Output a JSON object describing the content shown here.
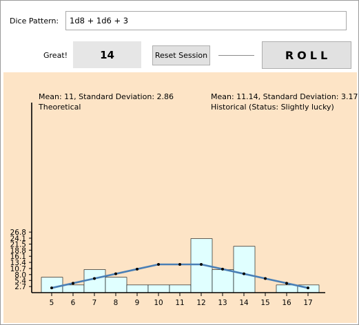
{
  "form": {
    "pattern_label": "Dice Pattern:",
    "pattern_value": "1d8 + 1d6 + 3",
    "result_label": "Great!",
    "result_value": "14",
    "reset_label": "Reset Session",
    "roll_label": "ROLL"
  },
  "stats": {
    "theoretical_line1": "Mean: 11, Standard Deviation: 2.86",
    "theoretical_line2": "Theoretical",
    "historical_line1": "Mean: 11.14, Standard Deviation: 3.17",
    "historical_line2": "Historical (Status: Slightly lucky)"
  },
  "colors": {
    "chart_background": "#fde4c6",
    "bar_fill": "#e0ffff",
    "line": "#4a7fb5"
  },
  "chart_data": {
    "type": "bar",
    "categories": [
      "5",
      "6",
      "7",
      "8",
      "9",
      "10",
      "11",
      "12",
      "13",
      "14",
      "15",
      "16",
      "17"
    ],
    "y_ticks": [
      "2.7",
      "5.4",
      "8.0",
      "10.7",
      "13.4",
      "16.1",
      "18.8",
      "21.5",
      "24.1",
      "26.8"
    ],
    "ylim": [
      0,
      28
    ],
    "series": [
      {
        "type": "bar",
        "values": [
          6.8,
          3.4,
          10.2,
          6.8,
          3.4,
          3.4,
          3.4,
          23.9,
          10.2,
          20.5,
          0,
          3.4,
          3.4
        ]
      },
      {
        "type": "line",
        "values": [
          2.08,
          4.17,
          6.25,
          8.33,
          10.42,
          12.5,
          12.5,
          12.5,
          10.42,
          8.33,
          6.25,
          4.17,
          2.08
        ]
      }
    ],
    "grid": false
  }
}
